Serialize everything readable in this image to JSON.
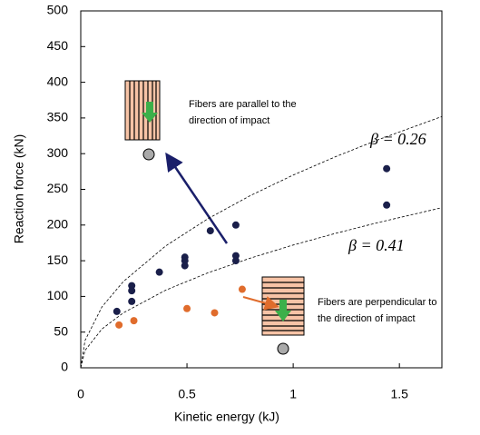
{
  "chart_data": {
    "type": "scatter",
    "xlabel": "Kinetic energy (kJ)",
    "ylabel": "Reaction force (kN)",
    "xlim": [
      0,
      1.7
    ],
    "ylim": [
      0,
      500
    ],
    "xticks": [
      0,
      0.5,
      1,
      1.5
    ],
    "yticks": [
      0,
      50,
      100,
      150,
      200,
      250,
      300,
      350,
      400,
      450,
      500
    ],
    "series": [
      {
        "color": "#1a1f4a",
        "x": [
          0.17,
          0.24,
          0.24,
          0.24,
          0.37,
          0.49,
          0.49,
          0.49,
          0.61,
          0.73,
          0.73,
          0.73,
          1.44,
          1.44
        ],
        "values": [
          79,
          115,
          108,
          93,
          134,
          155,
          150,
          143,
          192,
          200,
          157,
          150,
          279,
          228
        ]
      },
      {
        "color": "#e06c2c",
        "x": [
          0.18,
          0.25,
          0.5,
          0.63,
          0.76
        ],
        "values": [
          60,
          66,
          83,
          77,
          110
        ]
      }
    ],
    "curves": [
      {
        "label": "β = 0.26",
        "x": [
          0,
          0.02,
          0.1,
          0.2,
          0.4,
          0.6,
          0.8,
          1.0,
          1.2,
          1.4,
          1.7
        ],
        "values": [
          0,
          38.2,
          85.4,
          120.7,
          170.8,
          209.1,
          241.5,
          270,
          295.8,
          319.5,
          352
        ]
      },
      {
        "label": "β = 0.41",
        "x": [
          0,
          0.02,
          0.1,
          0.2,
          0.4,
          0.6,
          0.8,
          1.0,
          1.2,
          1.4,
          1.7
        ],
        "values": [
          0,
          24.3,
          54.4,
          76.9,
          108.8,
          133.2,
          153.8,
          172,
          188.4,
          203.5,
          224.3
        ]
      }
    ],
    "annotations": [
      {
        "lines": [
          "Fibers are parallel to the",
          "direction of impact"
        ]
      },
      {
        "lines": [
          "Fibers are perpendicular to",
          "the direction of impact"
        ]
      }
    ]
  }
}
